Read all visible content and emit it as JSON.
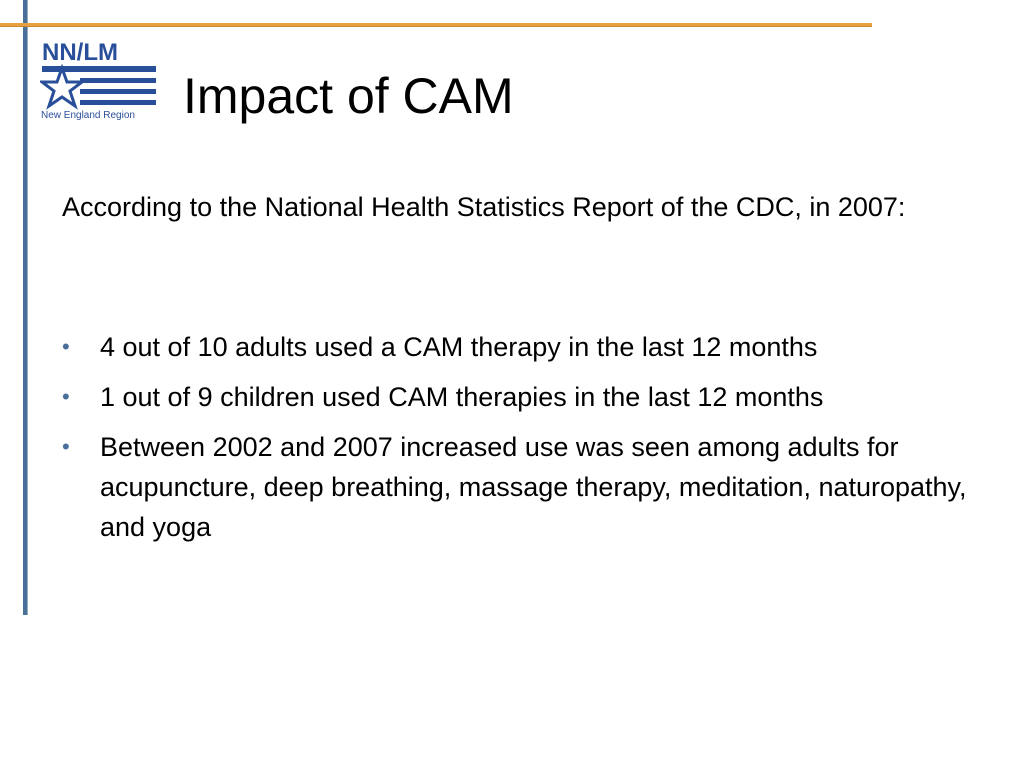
{
  "logo": {
    "acronym": "NN/LM",
    "region": "New England Region"
  },
  "slide": {
    "title": "Impact of CAM",
    "intro": "According to the National Health Statistics Report of the CDC, in 2007:",
    "bullets": [
      "4 out of 10 adults used a CAM therapy in the last 12 months",
      "1 out of 9 children used CAM therapies in the last 12 months",
      "Between 2002 and 2007 increased use was seen among adults for acupuncture, deep breathing, massage therapy, meditation, naturopathy, and yoga"
    ]
  }
}
